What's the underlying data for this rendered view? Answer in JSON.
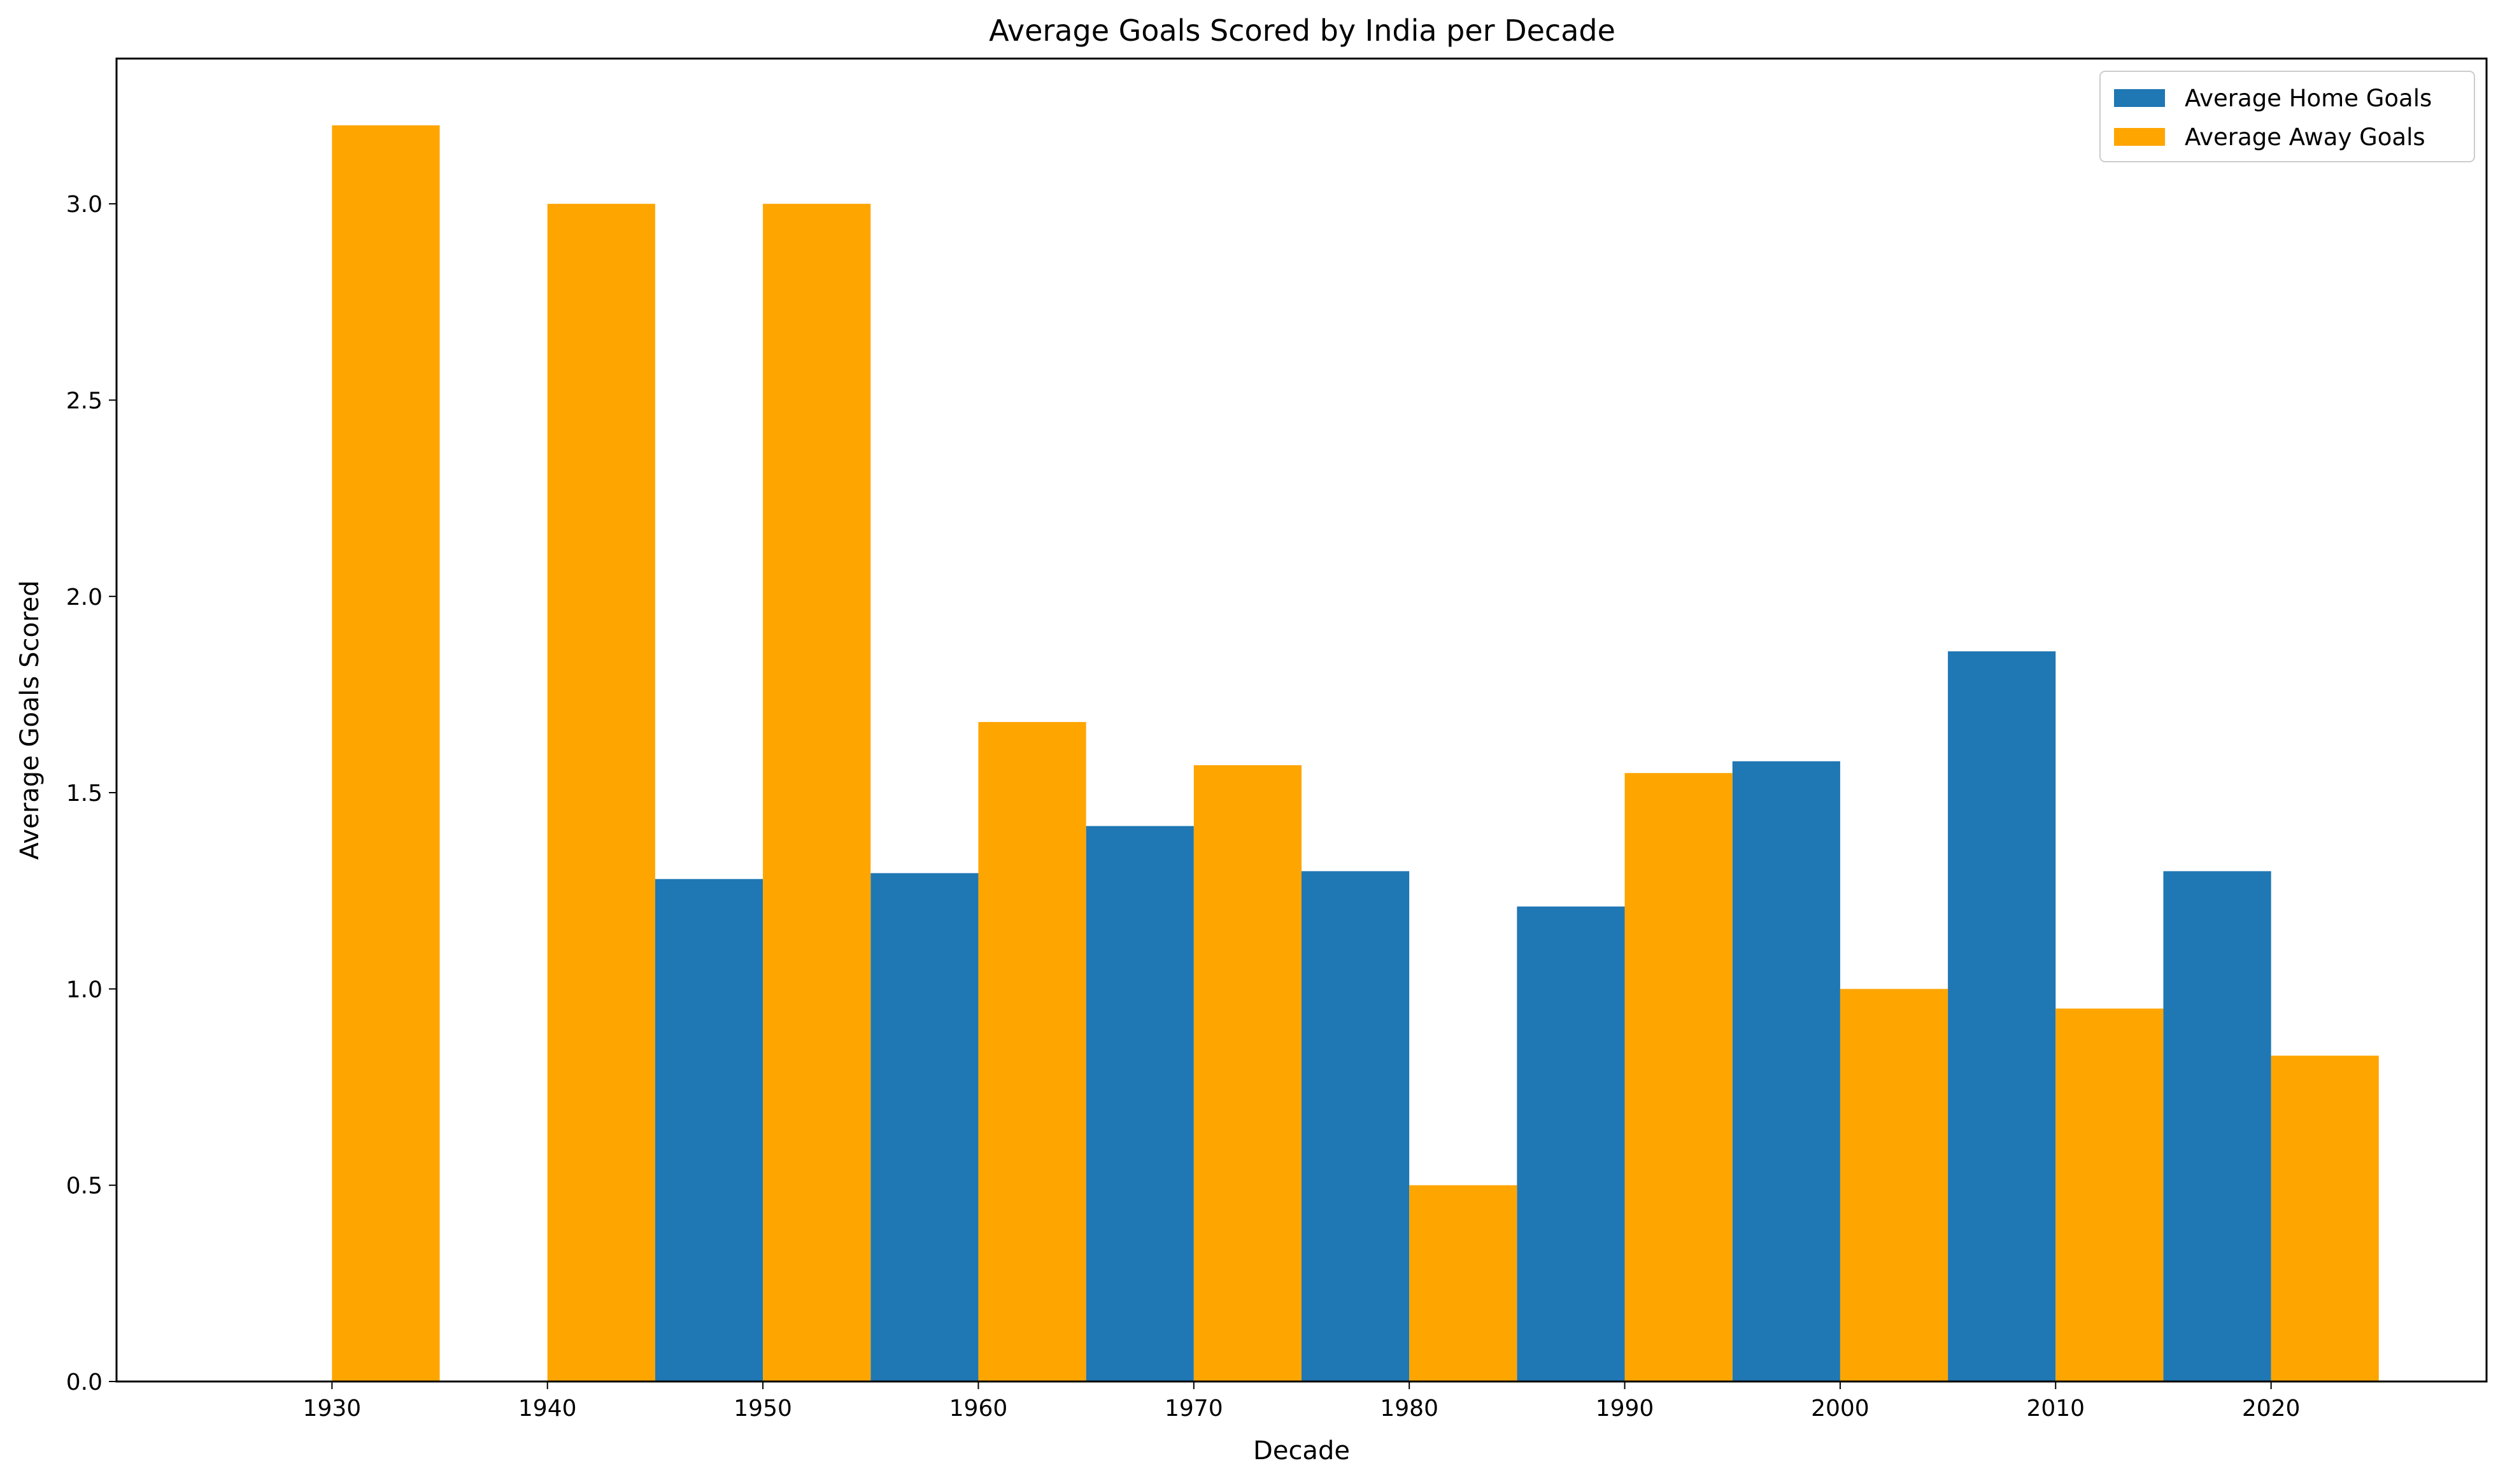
{
  "chart_data": {
    "type": "bar",
    "title": "Average Goals Scored by India per Decade",
    "xlabel": "Decade",
    "ylabel": "Average Goals Scored",
    "categories": [
      "1930",
      "1940",
      "1950",
      "1960",
      "1970",
      "1980",
      "1990",
      "2000",
      "2010",
      "2020"
    ],
    "x": [
      1930,
      1940,
      1950,
      1960,
      1970,
      1980,
      1990,
      2000,
      2010,
      2020
    ],
    "xlim": [
      1920,
      2030
    ],
    "ylim": [
      0,
      3.37
    ],
    "yticks": [
      "0.0",
      "0.5",
      "1.0",
      "1.5",
      "2.0",
      "2.5",
      "3.0"
    ],
    "grid": false,
    "legend_position": "top-right",
    "series": [
      {
        "name": "Average Home Goals",
        "color": "#1f77b4",
        "values": [
          null,
          null,
          1.28,
          1.295,
          1.415,
          1.3,
          1.21,
          1.58,
          1.86,
          1.3
        ]
      },
      {
        "name": "Average Away Goals",
        "color": "#ffa500",
        "values": [
          3.2,
          3.0,
          3.0,
          1.68,
          1.57,
          0.5,
          1.55,
          1.0,
          0.95,
          0.83
        ]
      }
    ]
  }
}
